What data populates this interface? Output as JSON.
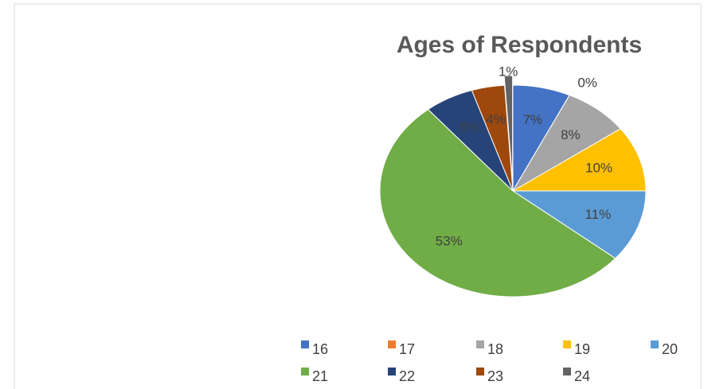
{
  "chart_data": {
    "type": "pie",
    "title": "Ages of Respondents",
    "categories": [
      "16",
      "17",
      "18",
      "19",
      "20",
      "21",
      "22",
      "23",
      "24"
    ],
    "values": [
      7,
      0,
      8,
      10,
      11,
      53,
      6,
      4,
      1
    ],
    "value_labels": [
      "7%",
      "0%",
      "8%",
      "10%",
      "11%",
      "53%",
      "6%",
      "4%",
      "1%"
    ],
    "colors": [
      "#4472c4",
      "#ed7d31",
      "#a5a5a5",
      "#ffc000",
      "#5b9bd5",
      "#70ad47",
      "#264478",
      "#9e480e",
      "#636363"
    ],
    "legend": "bottom"
  }
}
